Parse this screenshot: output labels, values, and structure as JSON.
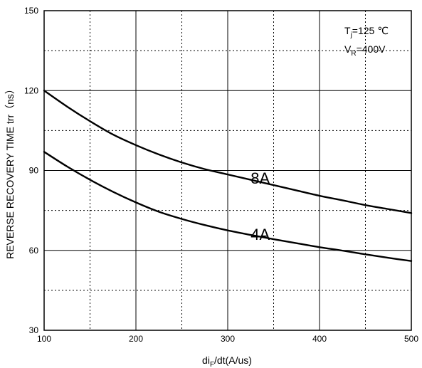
{
  "chart_data": {
    "type": "line",
    "xlabel": "di",
    "xlabel_sub": "F",
    "xlabel_tail": "/dt(A/us)",
    "ylabel": "REVERSE RECOVERY TIME   trr（ns）",
    "xlim": [
      100,
      500
    ],
    "ylim": [
      30,
      150
    ],
    "x_ticks": [
      100,
      200,
      300,
      400,
      500
    ],
    "y_ticks": [
      30,
      60,
      90,
      120,
      150
    ],
    "x_minor": [
      150,
      250,
      350,
      450
    ],
    "y_minor": [
      45,
      75,
      105,
      135
    ],
    "grid": true,
    "conditions": {
      "tj_main": "T",
      "tj_sub": "j",
      "tj_value": "=125 ℃",
      "vr_main": "V",
      "vr_sub": "R",
      "vr_value": "=400V"
    },
    "series": [
      {
        "name": "8A",
        "label_at": [
          325,
          85
        ],
        "x": [
          100,
          125,
          150,
          175,
          200,
          225,
          250,
          275,
          300,
          325,
          350,
          375,
          400,
          425,
          450,
          475,
          500
        ],
        "y": [
          120,
          114,
          108.5,
          103.5,
          99.5,
          96,
          93,
          90.5,
          88.5,
          86.5,
          84.5,
          82.5,
          80.5,
          78.8,
          77,
          75.5,
          74
        ]
      },
      {
        "name": "4A",
        "label_at": [
          325,
          64
        ],
        "x": [
          100,
          125,
          150,
          175,
          200,
          225,
          250,
          275,
          300,
          325,
          350,
          375,
          400,
          425,
          450,
          475,
          500
        ],
        "y": [
          97,
          91.5,
          86.5,
          82,
          78,
          74.5,
          71.8,
          69.5,
          67.5,
          65.8,
          64.2,
          62.7,
          61.2,
          59.9,
          58.5,
          57.2,
          56
        ]
      }
    ]
  }
}
